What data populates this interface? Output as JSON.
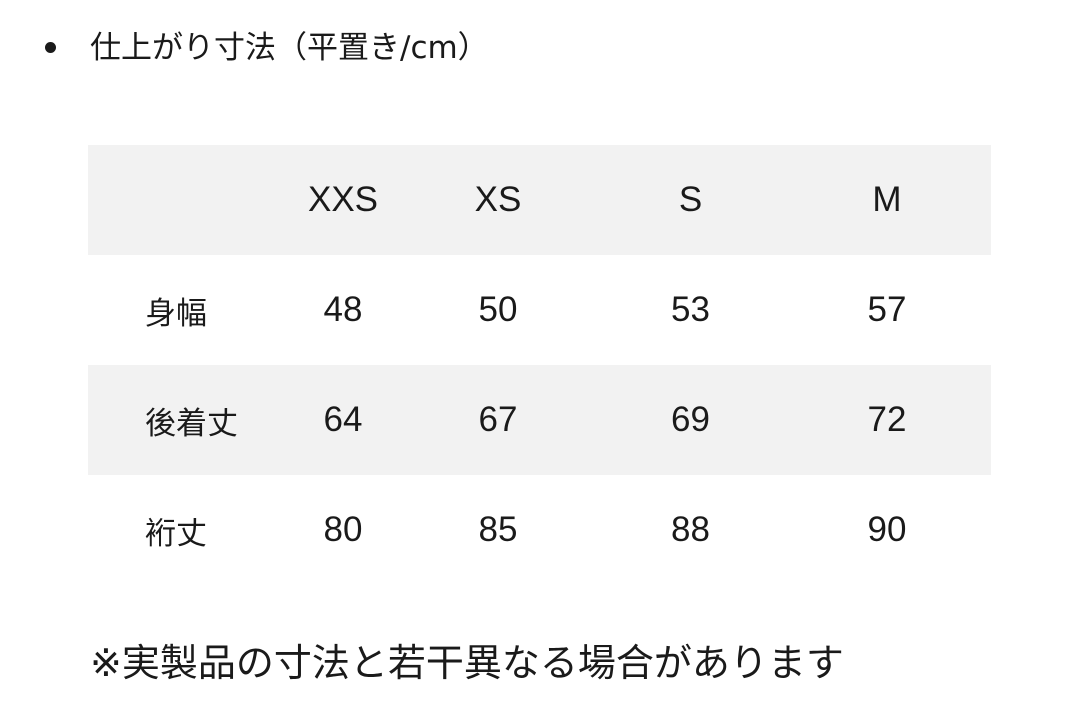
{
  "heading": "仕上がり寸法（平置き/cm）",
  "table": {
    "columns": [
      "",
      "XXS",
      "XS",
      "S",
      "M"
    ],
    "rows": [
      {
        "label": "身幅",
        "values": [
          "48",
          "50",
          "53",
          "57"
        ]
      },
      {
        "label": "後着丈",
        "values": [
          "64",
          "67",
          "69",
          "72"
        ]
      },
      {
        "label": "裄丈",
        "values": [
          "80",
          "85",
          "88",
          "90"
        ]
      }
    ]
  },
  "note": "※実製品の寸法と若干異なる場合があります"
}
